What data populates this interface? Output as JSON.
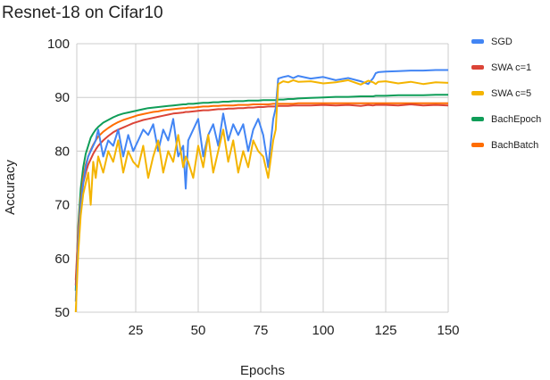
{
  "chart_data": {
    "type": "line",
    "title": "Resnet-18 on Cifar10",
    "xlabel": "Epochs",
    "ylabel": "Accuracy",
    "xlim": [
      0,
      150
    ],
    "ylim": [
      50,
      100
    ],
    "xticks": [
      25,
      50,
      75,
      100,
      125,
      150
    ],
    "yticks": [
      50,
      60,
      70,
      80,
      90,
      100
    ],
    "grid": true,
    "legend_position": "right",
    "x": [
      1,
      2,
      3,
      4,
      5,
      6,
      7,
      8,
      9,
      10,
      12,
      14,
      16,
      18,
      20,
      22,
      24,
      26,
      28,
      30,
      32,
      34,
      36,
      38,
      40,
      42,
      44,
      45,
      46,
      48,
      50,
      52,
      54,
      56,
      58,
      60,
      62,
      64,
      66,
      68,
      70,
      72,
      74,
      76,
      78,
      80,
      81,
      82,
      84,
      86,
      88,
      90,
      95,
      100,
      105,
      110,
      115,
      118,
      120,
      121,
      122,
      125,
      130,
      135,
      140,
      145,
      150
    ],
    "series": [
      {
        "name": "SGD",
        "color": "#4285f4",
        "values": [
          52,
          63,
          70,
          74,
          77,
          79,
          80,
          81,
          82,
          84,
          79,
          82,
          81,
          84,
          79,
          83,
          80,
          82,
          84,
          83,
          85,
          80,
          84,
          82,
          86,
          79,
          81,
          73,
          82,
          84,
          86,
          79,
          83,
          85,
          81,
          87,
          82,
          85,
          83,
          85,
          80,
          84,
          86,
          83,
          77,
          86,
          88,
          93.5,
          93.8,
          94,
          93.6,
          94,
          93.5,
          93.8,
          93.2,
          93.6,
          93,
          92.5,
          93.6,
          94.5,
          94.7,
          94.8,
          94.9,
          95,
          95,
          95.1,
          95.1
        ]
      },
      {
        "name": "SWA c=1",
        "color": "#db4437",
        "values": [
          55,
          64,
          70,
          74,
          76,
          77.5,
          78.5,
          79.5,
          80.3,
          81,
          82,
          82.8,
          83.5,
          84,
          84.4,
          84.8,
          85.2,
          85.5,
          85.8,
          86,
          86.2,
          86.4,
          86.6,
          86.8,
          87,
          87.1,
          87.2,
          87.3,
          87.3,
          87.4,
          87.5,
          87.6,
          87.6,
          87.7,
          87.8,
          87.8,
          87.9,
          87.9,
          88,
          88,
          88.1,
          88.1,
          88.2,
          88.2,
          88.3,
          88.3,
          88.3,
          88.4,
          88.4,
          88.4,
          88.5,
          88.5,
          88.5,
          88.6,
          88.5,
          88.6,
          88.4,
          88.6,
          88.5,
          88.6,
          88.6,
          88.6,
          88.5,
          88.7,
          88.5,
          88.6,
          88.5
        ]
      },
      {
        "name": "SWA c=5",
        "color": "#f4b400",
        "values": [
          50,
          61,
          68,
          72,
          74,
          76,
          70,
          78,
          75,
          79,
          76,
          80,
          78,
          82,
          76,
          80,
          78,
          77,
          81,
          75,
          79,
          82,
          76,
          80,
          78,
          83,
          77,
          79,
          78,
          75,
          81,
          77,
          83,
          76,
          80,
          84,
          78,
          82,
          76,
          80,
          77,
          82,
          80,
          79,
          75,
          82,
          84,
          92.5,
          93,
          92.8,
          93.2,
          92.9,
          93,
          92.6,
          92.8,
          93.2,
          92.4,
          93.1,
          92.8,
          92.5,
          92.9,
          93,
          92.6,
          92.9,
          92.5,
          92.8,
          92.7
        ]
      },
      {
        "name": "BachEpoch",
        "color": "#0f9d58",
        "values": [
          54,
          66,
          73,
          77,
          79.5,
          81,
          82.5,
          83.3,
          84,
          84.5,
          85.3,
          85.8,
          86.3,
          86.7,
          87,
          87.2,
          87.4,
          87.6,
          87.8,
          88,
          88.1,
          88.2,
          88.3,
          88.4,
          88.5,
          88.6,
          88.7,
          88.7,
          88.8,
          88.8,
          88.9,
          89,
          89,
          89.1,
          89.1,
          89.2,
          89.2,
          89.3,
          89.3,
          89.3,
          89.4,
          89.4,
          89.4,
          89.5,
          89.5,
          89.5,
          89.5,
          89.6,
          89.6,
          89.7,
          89.7,
          89.8,
          89.9,
          90,
          90.1,
          90.1,
          90.2,
          90.2,
          90.2,
          90.3,
          90.3,
          90.3,
          90.4,
          90.4,
          90.4,
          90.5,
          90.5
        ]
      },
      {
        "name": "BachBatch",
        "color": "#ff6d00",
        "values": [
          56,
          65,
          71,
          75,
          77.5,
          79,
          80.2,
          81.2,
          82,
          82.7,
          83.6,
          84.3,
          84.9,
          85.4,
          85.8,
          86.1,
          86.4,
          86.7,
          86.9,
          87.1,
          87.3,
          87.4,
          87.6,
          87.7,
          87.8,
          87.9,
          88,
          88,
          88.1,
          88.1,
          88.2,
          88.3,
          88.3,
          88.4,
          88.4,
          88.5,
          88.5,
          88.5,
          88.6,
          88.6,
          88.6,
          88.7,
          88.7,
          88.7,
          88.7,
          88.8,
          88.8,
          88.8,
          88.8,
          88.8,
          88.8,
          88.9,
          88.9,
          88.9,
          88.9,
          88.9,
          88.9,
          88.9,
          88.9,
          88.9,
          88.9,
          88.9,
          88.9,
          88.9,
          88.9,
          88.9,
          88.9
        ]
      }
    ]
  },
  "legend": [
    "SGD",
    "SWA c=1",
    "SWA c=5",
    "BachEpoch",
    "BachBatch"
  ]
}
